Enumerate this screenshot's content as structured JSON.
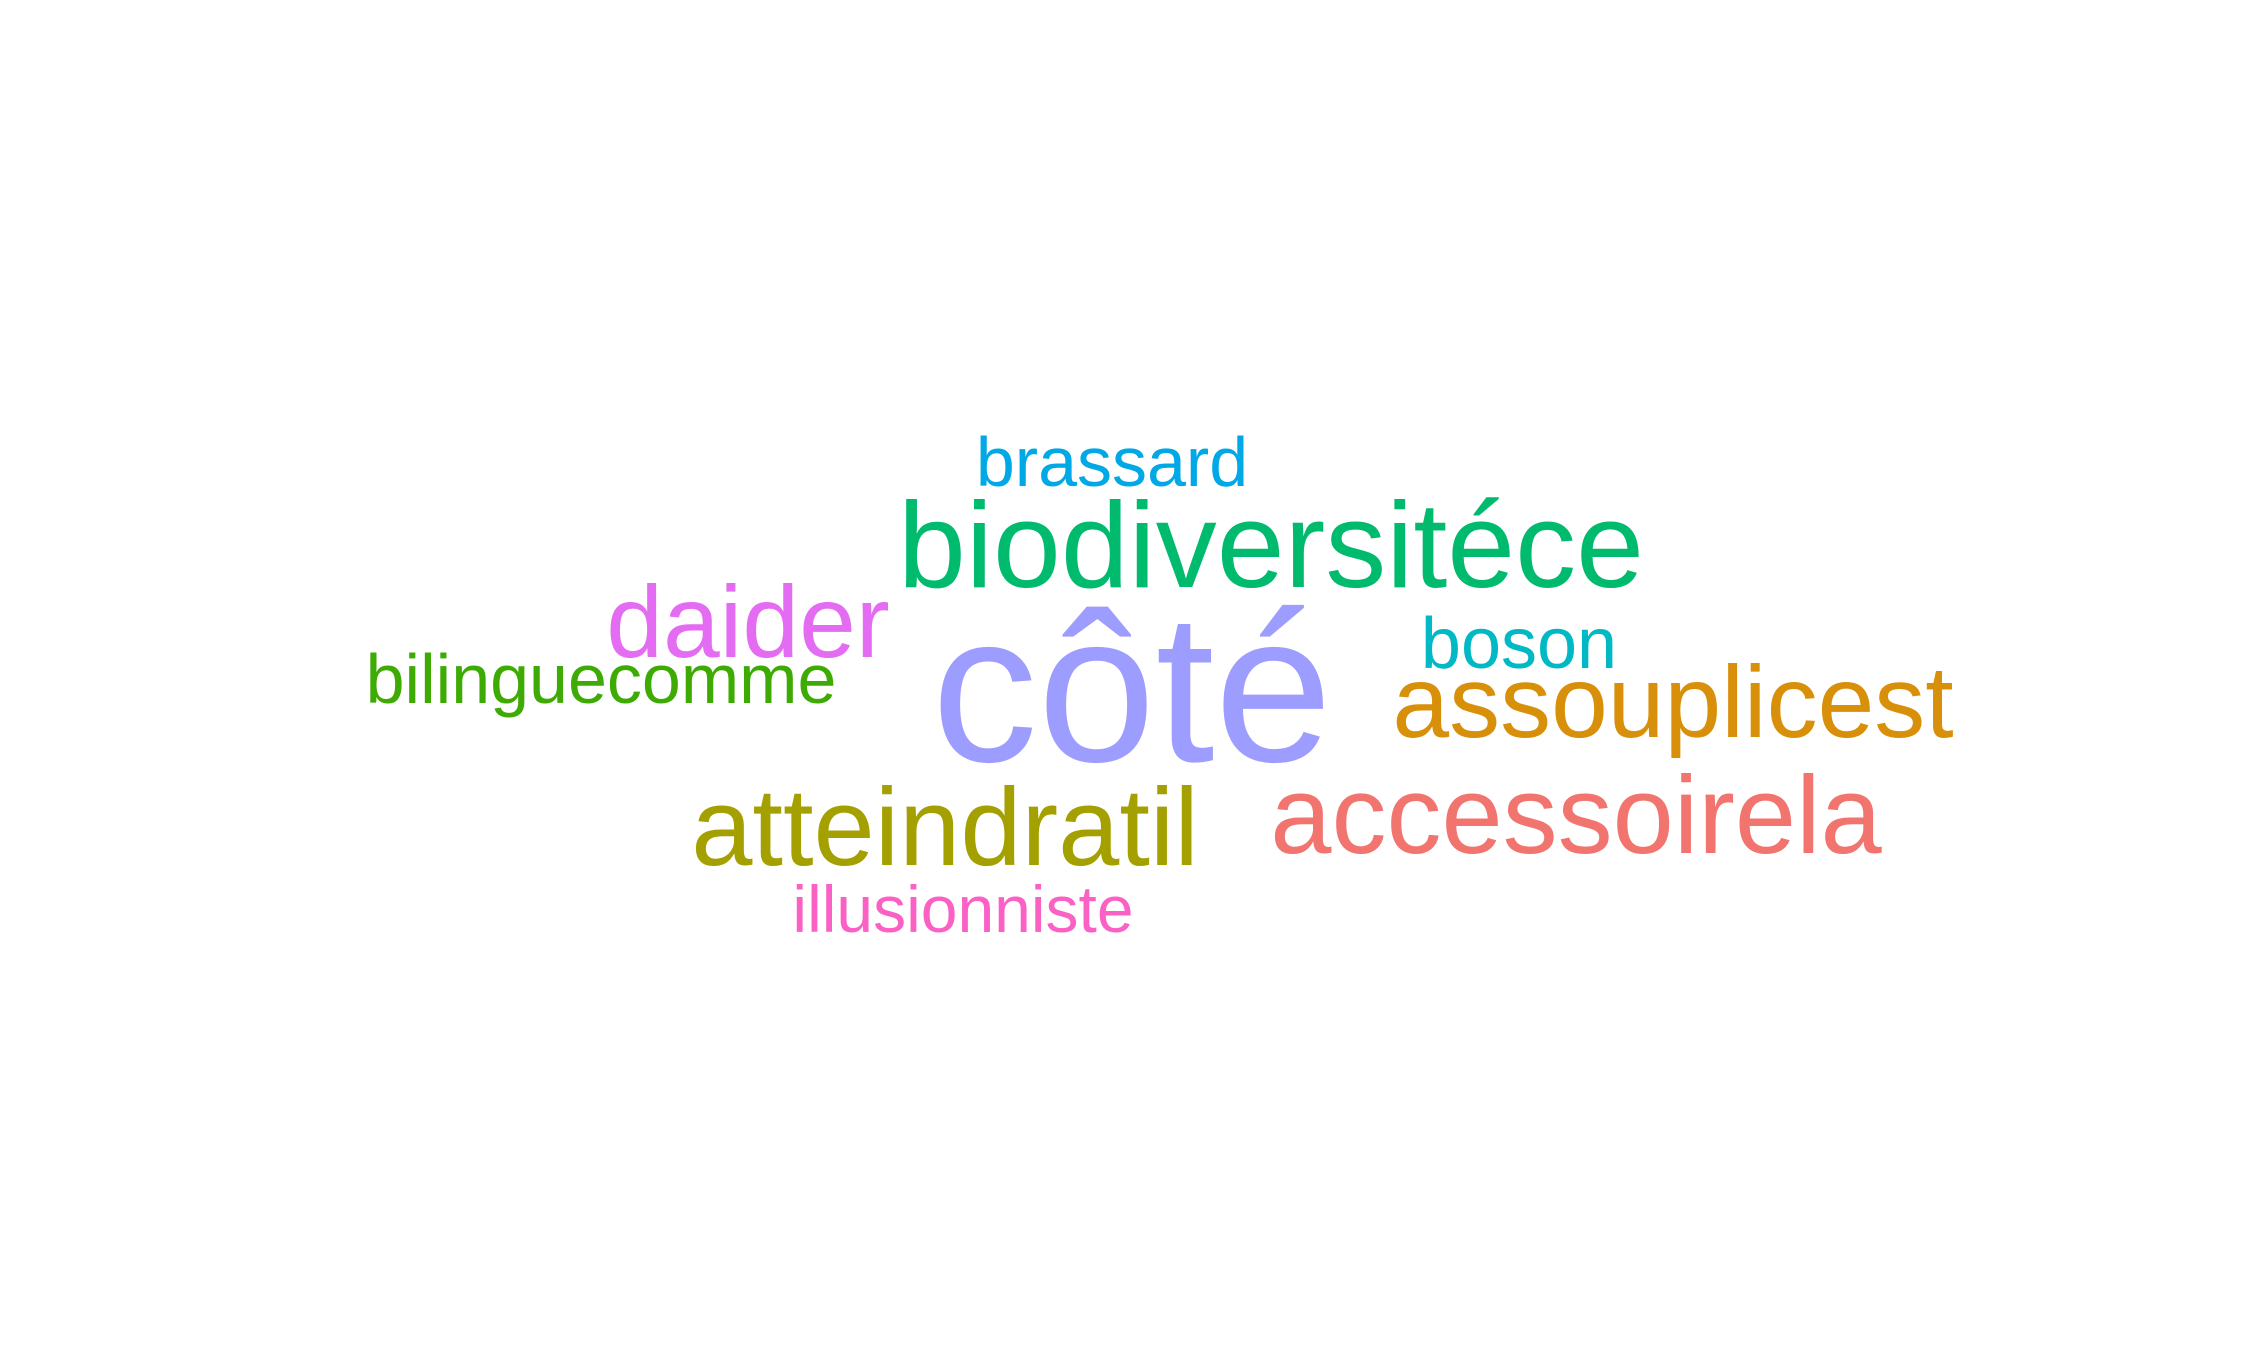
{
  "words": [
    {
      "text": "brassard",
      "color": "#00a9e6"
    },
    {
      "text": "biodiversitéce",
      "color": "#00bb6e"
    },
    {
      "text": "daider",
      "color": "#e46cf2"
    },
    {
      "text": "boson",
      "color": "#00b9c4"
    },
    {
      "text": "bilinguecomme",
      "color": "#3eab04"
    },
    {
      "text": "côté",
      "color": "#9d9dff"
    },
    {
      "text": "assouplicest",
      "color": "#d8900a"
    },
    {
      "text": "atteindratil",
      "color": "#a4a000"
    },
    {
      "text": "accessoirela",
      "color": "#f2746f"
    },
    {
      "text": "illusionniste",
      "color": "#fb61c5"
    }
  ]
}
